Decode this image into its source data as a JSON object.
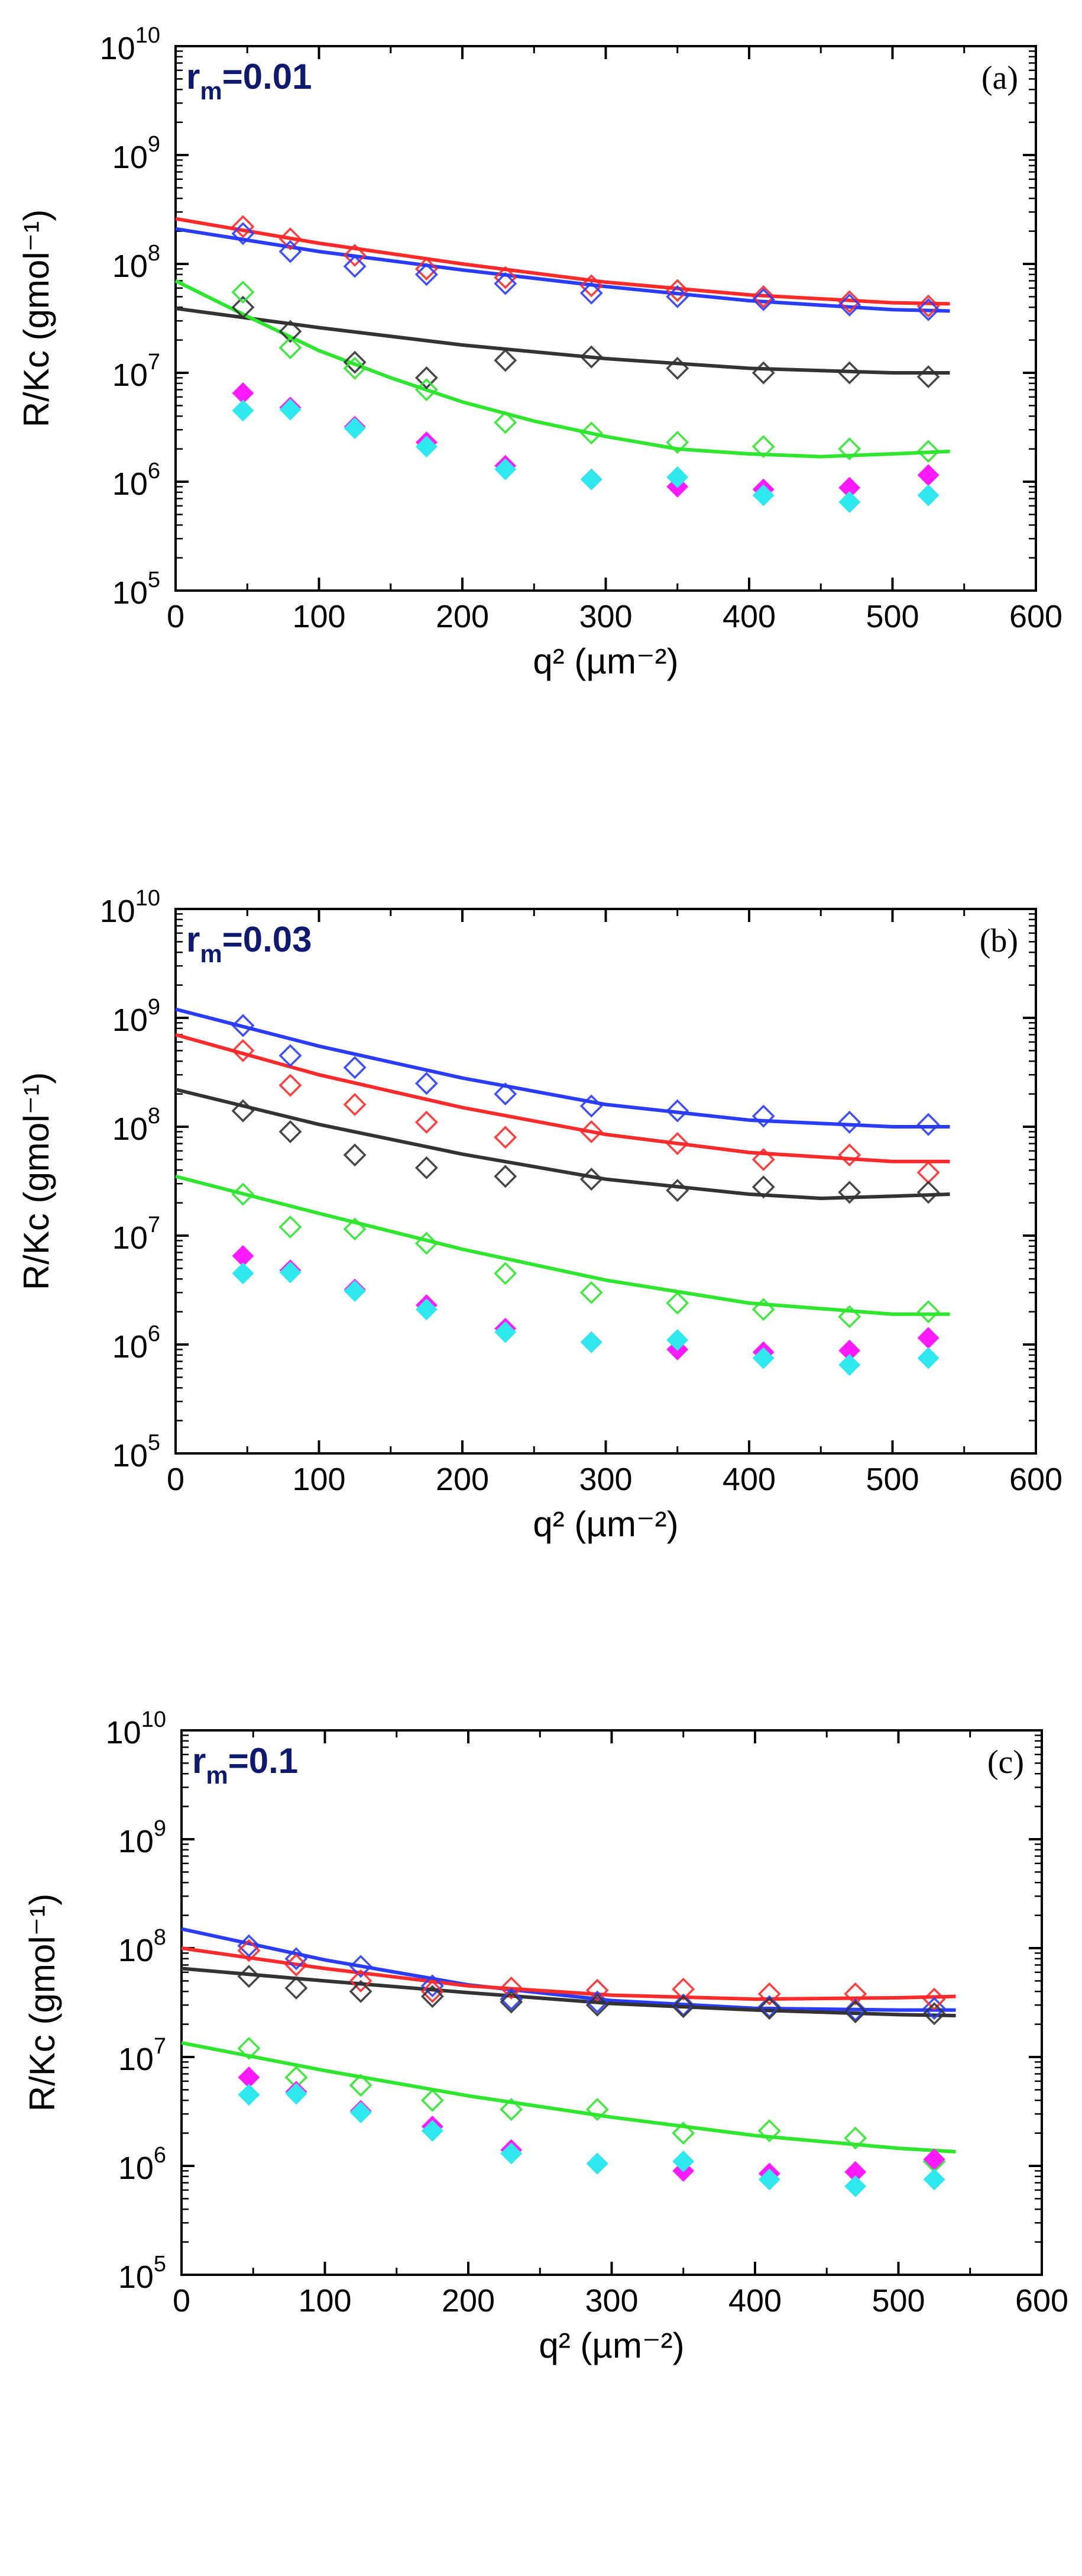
{
  "chart_data": [
    {
      "type": "scatter",
      "panel": "(a)",
      "rm_base": "r",
      "rm_sub": "m",
      "rm_value": "=0.01",
      "xlabel": "q² (µm⁻²)",
      "ylabel": "R/Kc (gmol⁻¹)",
      "xlim": [
        0,
        600
      ],
      "ylim": [
        100000,
        10000000000
      ],
      "yscale": "log",
      "x_ticks": [
        "0",
        "100",
        "200",
        "300",
        "400",
        "500",
        "600"
      ],
      "y_ticks": [
        {
          "base": "10",
          "exp": "5"
        },
        {
          "base": "10",
          "exp": "6"
        },
        {
          "base": "10",
          "exp": "7"
        },
        {
          "base": "10",
          "exp": "8"
        },
        {
          "base": "10",
          "exp": "9"
        },
        {
          "base": "10",
          "exp": "10"
        }
      ],
      "grid": false,
      "series": [
        {
          "color": "#ff2a2a",
          "marker": "open-diamond",
          "x": [
            47,
            80,
            125,
            175,
            230,
            290,
            350,
            410,
            470,
            525
          ],
          "y": [
            220000000.0,
            170000000.0,
            120000000.0,
            90000000.0,
            75000000.0,
            63000000.0,
            57000000.0,
            50000000.0,
            45000000.0,
            41000000.0
          ],
          "fit": [
            [
              0,
              260000000.0
            ],
            [
              100,
              155000000.0
            ],
            [
              200,
              100000000.0
            ],
            [
              300,
              68000000.0
            ],
            [
              400,
              52000000.0
            ],
            [
              500,
              44000000.0
            ],
            [
              540,
              43000000.0
            ]
          ]
        },
        {
          "color": "#2a3cff",
          "marker": "open-diamond",
          "x": [
            47,
            80,
            125,
            175,
            230,
            290,
            350,
            410,
            470,
            525
          ],
          "y": [
            190000000.0,
            130000000.0,
            95000000.0,
            80000000.0,
            66000000.0,
            54000000.0,
            50000000.0,
            47000000.0,
            42000000.0,
            38000000.0
          ],
          "fit": [
            [
              0,
              210000000.0
            ],
            [
              100,
              130000000.0
            ],
            [
              200,
              88000000.0
            ],
            [
              300,
              62000000.0
            ],
            [
              400,
              46000000.0
            ],
            [
              500,
              38000000.0
            ],
            [
              540,
              37000000.0
            ]
          ]
        },
        {
          "color": "#333333",
          "marker": "open-diamond",
          "x": [
            47,
            80,
            125,
            175,
            230,
            290,
            350,
            410,
            470,
            525
          ],
          "y": [
            40000000.0,
            24000000.0,
            12500000.0,
            9000000.0,
            13000000.0,
            14000000.0,
            11000000.0,
            10000000.0,
            10000000.0,
            9200000.0
          ],
          "fit": [
            [
              0,
              39000000.0
            ],
            [
              100,
              26000000.0
            ],
            [
              200,
              18000000.0
            ],
            [
              300,
              13500000.0
            ],
            [
              400,
              11000000.0
            ],
            [
              500,
              10000000.0
            ],
            [
              540,
              10000000.0
            ]
          ]
        },
        {
          "color": "#2ee62e",
          "marker": "open-diamond",
          "x": [
            47,
            80,
            125,
            175,
            230,
            290,
            350,
            410,
            470,
            525
          ],
          "y": [
            55000000.0,
            17000000.0,
            11000000.0,
            7000000.0,
            3500000.0,
            2800000.0,
            2300000.0,
            2100000.0,
            2000000.0,
            1900000.0
          ],
          "fit": [
            [
              0,
              70000000.0
            ],
            [
              50,
              33000000.0
            ],
            [
              100,
              16000000.0
            ],
            [
              150,
              9000000.0
            ],
            [
              200,
              5400000.0
            ],
            [
              250,
              3600000.0
            ],
            [
              300,
              2600000.0
            ],
            [
              350,
              2000000.0
            ],
            [
              400,
              1800000.0
            ],
            [
              450,
              1700000.0
            ],
            [
              500,
              1800000.0
            ],
            [
              540,
              1900000.0
            ]
          ]
        },
        {
          "color": "#ff1aff",
          "marker": "filled-diamond",
          "x": [
            47,
            80,
            125,
            175,
            230,
            290,
            350,
            410,
            470,
            525
          ],
          "y": [
            6500000.0,
            4800000.0,
            3200000.0,
            2300000.0,
            1400000.0,
            1050000.0,
            900000.0,
            850000.0,
            880000.0,
            1150000.0
          ]
        },
        {
          "color": "#2ee8f0",
          "marker": "filled-diamond",
          "x": [
            47,
            80,
            125,
            175,
            230,
            290,
            350,
            410,
            470,
            525
          ],
          "y": [
            4500000.0,
            4600000.0,
            3100000.0,
            2100000.0,
            1300000.0,
            1050000.0,
            1100000.0,
            750000.0,
            650000.0,
            750000.0
          ]
        }
      ]
    },
    {
      "type": "scatter",
      "panel": "(b)",
      "rm_base": "r",
      "rm_sub": "m",
      "rm_value": "=0.03",
      "xlabel": "q² (µm⁻²)",
      "ylabel": "R/Kc (gmol⁻¹)",
      "xlim": [
        0,
        600
      ],
      "ylim": [
        100000,
        10000000000
      ],
      "yscale": "log",
      "x_ticks": [
        "0",
        "100",
        "200",
        "300",
        "400",
        "500",
        "600"
      ],
      "y_ticks": [
        {
          "base": "10",
          "exp": "5"
        },
        {
          "base": "10",
          "exp": "6"
        },
        {
          "base": "10",
          "exp": "7"
        },
        {
          "base": "10",
          "exp": "8"
        },
        {
          "base": "10",
          "exp": "9"
        },
        {
          "base": "10",
          "exp": "10"
        }
      ],
      "grid": false,
      "series": [
        {
          "color": "#2a3cff",
          "marker": "open-diamond",
          "x": [
            47,
            80,
            125,
            175,
            230,
            290,
            350,
            410,
            470,
            525
          ],
          "y": [
            850000000.0,
            450000000.0,
            350000000.0,
            250000000.0,
            200000000.0,
            155000000.0,
            140000000.0,
            125000000.0,
            110000000.0,
            105000000.0
          ],
          "fit": [
            [
              0,
              1200000000.0
            ],
            [
              100,
              550000000.0
            ],
            [
              200,
              280000000.0
            ],
            [
              300,
              160000000.0
            ],
            [
              400,
              115000000.0
            ],
            [
              500,
              100000000.0
            ],
            [
              540,
              100000000.0
            ]
          ]
        },
        {
          "color": "#ff2a2a",
          "marker": "open-diamond",
          "x": [
            47,
            80,
            125,
            175,
            230,
            290,
            350,
            410,
            470,
            525
          ],
          "y": [
            500000000.0,
            240000000.0,
            160000000.0,
            110000000.0,
            80000000.0,
            90000000.0,
            70000000.0,
            50000000.0,
            55000000.0,
            38000000.0
          ],
          "fit": [
            [
              0,
              700000000.0
            ],
            [
              100,
              300000000.0
            ],
            [
              200,
              150000000.0
            ],
            [
              300,
              85000000.0
            ],
            [
              400,
              58000000.0
            ],
            [
              500,
              48000000.0
            ],
            [
              540,
              48000000.0
            ]
          ]
        },
        {
          "color": "#333333",
          "marker": "open-diamond",
          "x": [
            47,
            80,
            125,
            175,
            230,
            290,
            350,
            410,
            470,
            525
          ],
          "y": [
            140000000.0,
            90000000.0,
            55000000.0,
            42000000.0,
            35000000.0,
            33000000.0,
            26000000.0,
            28000000.0,
            25000000.0,
            25000000.0
          ],
          "fit": [
            [
              0,
              220000000.0
            ],
            [
              100,
              105000000.0
            ],
            [
              200,
              56000000.0
            ],
            [
              300,
              33000000.0
            ],
            [
              400,
              24000000.0
            ],
            [
              450,
              22000000.0
            ],
            [
              500,
              23000000.0
            ],
            [
              540,
              24000000.0
            ]
          ]
        },
        {
          "color": "#2ee62e",
          "marker": "open-diamond",
          "x": [
            47,
            80,
            125,
            175,
            230,
            290,
            350,
            410,
            470,
            525
          ],
          "y": [
            24000000.0,
            12000000.0,
            11500000.0,
            8500000.0,
            4500000.0,
            3000000.0,
            2400000.0,
            2100000.0,
            1800000.0,
            2000000.0
          ],
          "fit": [
            [
              0,
              35000000.0
            ],
            [
              100,
              16000000.0
            ],
            [
              200,
              7500000.0
            ],
            [
              300,
              3900000.0
            ],
            [
              400,
              2400000.0
            ],
            [
              500,
              1900000.0
            ],
            [
              540,
              1900000.0
            ]
          ]
        },
        {
          "color": "#ff1aff",
          "marker": "filled-diamond",
          "x": [
            47,
            80,
            125,
            175,
            230,
            290,
            350,
            410,
            470,
            525
          ],
          "y": [
            6500000.0,
            4800000.0,
            3200000.0,
            2300000.0,
            1400000.0,
            1050000.0,
            900000.0,
            850000.0,
            880000.0,
            1150000.0
          ]
        },
        {
          "color": "#2ee8f0",
          "marker": "filled-diamond",
          "x": [
            47,
            80,
            125,
            175,
            230,
            290,
            350,
            410,
            470,
            525
          ],
          "y": [
            4500000.0,
            4600000.0,
            3100000.0,
            2100000.0,
            1300000.0,
            1050000.0,
            1100000.0,
            750000.0,
            650000.0,
            750000.0
          ]
        }
      ]
    },
    {
      "type": "scatter",
      "panel": "(c)",
      "rm_base": "r",
      "rm_sub": "m",
      "rm_value": "=0.1",
      "xlabel": "q² (µm⁻²)",
      "ylabel": "R/Kc (gmol⁻¹)",
      "xlim": [
        0,
        600
      ],
      "ylim": [
        100000,
        10000000000
      ],
      "yscale": "log",
      "x_ticks": [
        "0",
        "100",
        "200",
        "300",
        "400",
        "500",
        "600"
      ],
      "y_ticks": [
        {
          "base": "10",
          "exp": "5"
        },
        {
          "base": "10",
          "exp": "6"
        },
        {
          "base": "10",
          "exp": "7"
        },
        {
          "base": "10",
          "exp": "8"
        },
        {
          "base": "10",
          "exp": "9"
        },
        {
          "base": "10",
          "exp": "10"
        }
      ],
      "grid": false,
      "series": [
        {
          "color": "#2a3cff",
          "marker": "open-diamond",
          "x": [
            47,
            80,
            125,
            175,
            230,
            290,
            350,
            410,
            470,
            525
          ],
          "y": [
            105000000.0,
            80000000.0,
            68000000.0,
            45000000.0,
            34000000.0,
            32000000.0,
            30000000.0,
            29000000.0,
            27000000.0,
            28000000.0
          ],
          "fit": [
            [
              0,
              150000000.0
            ],
            [
              100,
              78000000.0
            ],
            [
              200,
              46000000.0
            ],
            [
              300,
              33000000.0
            ],
            [
              400,
              28000000.0
            ],
            [
              500,
              27000000.0
            ],
            [
              540,
              27000000.0
            ]
          ]
        },
        {
          "color": "#ff2a2a",
          "marker": "open-diamond",
          "x": [
            47,
            80,
            125,
            175,
            230,
            290,
            350,
            410,
            470,
            525
          ],
          "y": [
            95000000.0,
            70000000.0,
            50000000.0,
            40000000.0,
            43000000.0,
            41000000.0,
            42000000.0,
            38000000.0,
            38000000.0,
            34000000.0
          ],
          "fit": [
            [
              0,
              100000000.0
            ],
            [
              100,
              65000000.0
            ],
            [
              200,
              45000000.0
            ],
            [
              300,
              37000000.0
            ],
            [
              400,
              34000000.0
            ],
            [
              500,
              35000000.0
            ],
            [
              540,
              36000000.0
            ]
          ]
        },
        {
          "color": "#333333",
          "marker": "open-diamond",
          "x": [
            47,
            80,
            125,
            175,
            230,
            290,
            350,
            410,
            470,
            525
          ],
          "y": [
            55000000.0,
            43000000.0,
            40000000.0,
            36000000.0,
            32000000.0,
            30000000.0,
            29000000.0,
            28000000.0,
            26000000.0,
            25000000.0
          ],
          "fit": [
            [
              0,
              65000000.0
            ],
            [
              100,
              50000000.0
            ],
            [
              200,
              39000000.0
            ],
            [
              300,
              31000000.0
            ],
            [
              400,
              27000000.0
            ],
            [
              500,
              24500000.0
            ],
            [
              540,
              24000000.0
            ]
          ]
        },
        {
          "color": "#2ee62e",
          "marker": "open-diamond",
          "x": [
            47,
            80,
            125,
            175,
            230,
            290,
            350,
            410,
            470,
            525
          ],
          "y": [
            12000000.0,
            6500000.0,
            5500000.0,
            4000000.0,
            3300000.0,
            3300000.0,
            2000000.0,
            2100000.0,
            1800000.0,
            1100000.0
          ],
          "fit": [
            [
              0,
              13500000.0
            ],
            [
              100,
              7500000.0
            ],
            [
              200,
              4400000.0
            ],
            [
              300,
              2800000.0
            ],
            [
              400,
              1900000.0
            ],
            [
              500,
              1450000.0
            ],
            [
              540,
              1350000.0
            ]
          ]
        },
        {
          "color": "#ff1aff",
          "marker": "filled-diamond",
          "x": [
            47,
            80,
            125,
            175,
            230,
            290,
            350,
            410,
            470,
            525
          ],
          "y": [
            6500000.0,
            4800000.0,
            3200000.0,
            2300000.0,
            1400000.0,
            1050000.0,
            900000.0,
            850000.0,
            880000.0,
            1150000.0
          ]
        },
        {
          "color": "#2ee8f0",
          "marker": "filled-diamond",
          "x": [
            47,
            80,
            125,
            175,
            230,
            290,
            350,
            410,
            470,
            525
          ],
          "y": [
            4500000.0,
            4600000.0,
            3100000.0,
            2100000.0,
            1300000.0,
            1050000.0,
            1100000.0,
            750000.0,
            650000.0,
            750000.0
          ]
        }
      ]
    }
  ]
}
